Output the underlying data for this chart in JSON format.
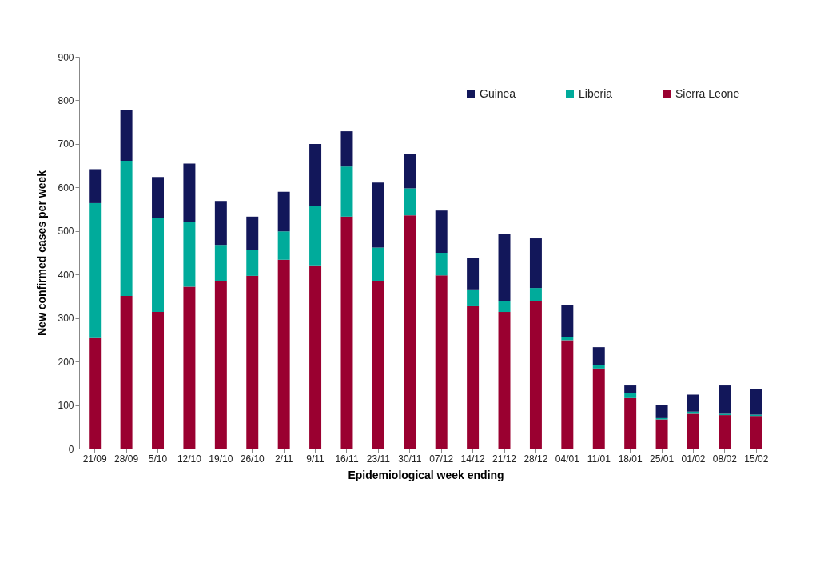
{
  "chart_data": {
    "type": "bar",
    "stacked": true,
    "xlabel": "Epidemiological week ending",
    "ylabel": "New confirmed cases per week",
    "categories": [
      "21/09",
      "28/09",
      "5/10",
      "12/10",
      "19/10",
      "26/10",
      "2/11",
      "9/11",
      "16/11",
      "23/11",
      "30/11",
      "07/12",
      "14/12",
      "21/12",
      "28/12",
      "04/01",
      "11/01",
      "18/01",
      "25/01",
      "01/02",
      "08/02",
      "15/02"
    ],
    "series": [
      {
        "name": "Sierra Leone",
        "color": "#9a0030",
        "values": [
          254,
          351,
          314,
          372,
          385,
          397,
          434,
          421,
          533,
          385,
          536,
          398,
          327,
          314,
          338,
          249,
          184,
          116,
          67,
          80,
          77,
          75
        ]
      },
      {
        "name": "Liberia",
        "color": "#00ab9b",
        "values": [
          310,
          310,
          216,
          148,
          83,
          60,
          65,
          136,
          115,
          77,
          62,
          52,
          37,
          24,
          31,
          8,
          8,
          11,
          3,
          5,
          3,
          3
        ]
      },
      {
        "name": "Guinea",
        "color": "#12175a",
        "values": [
          78,
          117,
          94,
          135,
          101,
          76,
          91,
          143,
          81,
          149,
          78,
          97,
          75,
          156,
          114,
          73,
          41,
          18,
          30,
          39,
          65,
          59
        ]
      }
    ],
    "ylim": [
      0,
      900
    ],
    "yticks": [
      0,
      100,
      200,
      300,
      400,
      500,
      600,
      700,
      800,
      900
    ],
    "legend": "top right",
    "grid": false
  }
}
